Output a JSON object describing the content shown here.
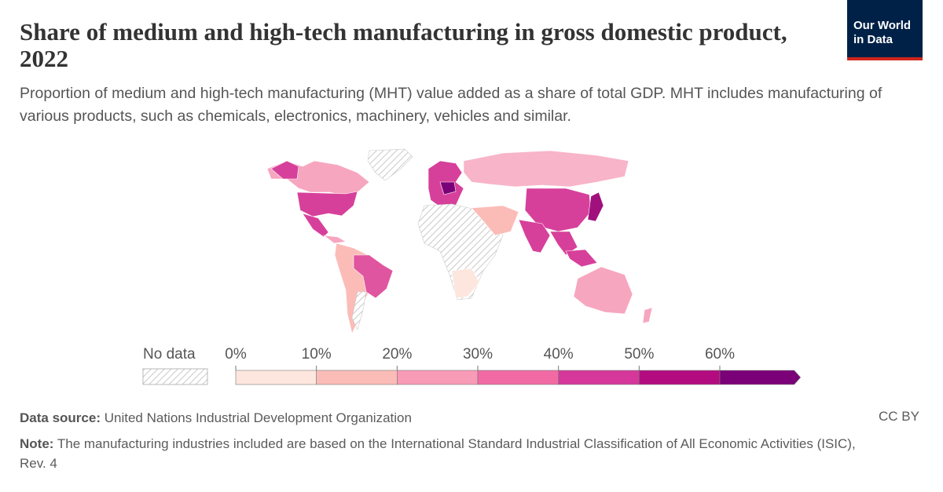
{
  "header": {
    "title": "Share of medium and high-tech manufacturing in gross domestic product, 2022",
    "subtitle": "Proportion of medium and high-tech manufacturing (MHT) value added as a share of total GDP. MHT includes manufacturing of various products, such as chemicals, electronics, machinery, vehicles and similar.",
    "logo": [
      "Our World",
      "in Data"
    ]
  },
  "legend": {
    "no_data_label": "No data",
    "ticks": [
      {
        "value": 0,
        "label": "0%"
      },
      {
        "value": 10,
        "label": "10%"
      },
      {
        "value": 20,
        "label": "20%"
      },
      {
        "value": 30,
        "label": "30%"
      },
      {
        "value": 40,
        "label": "40%"
      },
      {
        "value": 50,
        "label": "50%"
      },
      {
        "value": 60,
        "label": "60%"
      }
    ],
    "colors": [
      "#fde6dd",
      "#fbbcb8",
      "#f89bb6",
      "#f16aa3",
      "#d5389a",
      "#b30c80",
      "#7a0177"
    ]
  },
  "footer": {
    "source_label": "Data source:",
    "source": "United Nations Industrial Development Organization",
    "license": "CC BY",
    "note_label": "Note:",
    "note": "The manufacturing industries included are based on the International Standard Industrial Classification of All Economic Activities (ISIC), Rev. 4"
  }
}
